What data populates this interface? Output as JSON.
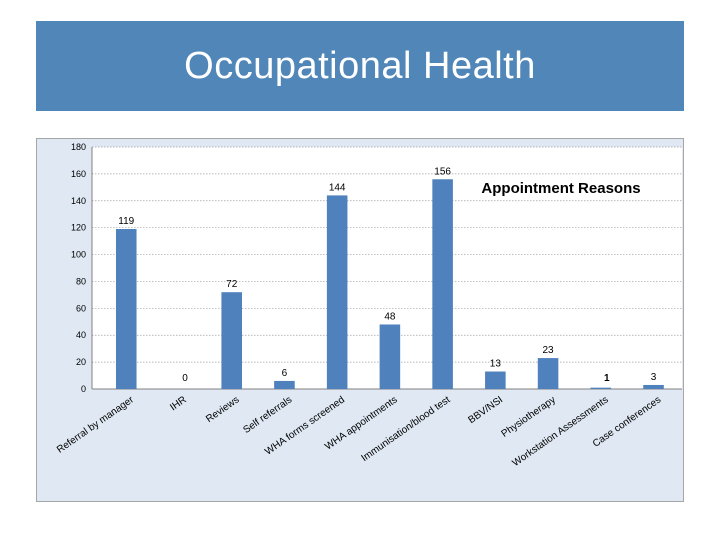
{
  "slide": {
    "title": "Occupational Health"
  },
  "colors": {
    "banner": "#5086b8",
    "bar": "#4f81bd",
    "frame_bg": "#dfe8f3",
    "plot_bg": "#ffffff"
  },
  "chart_data": {
    "type": "bar",
    "title": "Appointment Reasons",
    "xlabel": "",
    "ylabel": "",
    "ylim": [
      0,
      180
    ],
    "yticks": [
      0,
      20,
      40,
      60,
      80,
      100,
      120,
      140,
      160,
      180
    ],
    "grid": true,
    "legend": "none",
    "categories": [
      "Referral by manager",
      "IHR",
      "Reviews",
      "Self referrals",
      "WHA forms screened",
      "WHA appointments",
      "Immunisation/blood test",
      "BBV/NSI",
      "Physiotherapy",
      "Workstation Assessments",
      "Case conferences"
    ],
    "values": [
      119,
      0,
      72,
      6,
      144,
      48,
      156,
      13,
      23,
      1,
      3
    ],
    "data_labels": [
      "119",
      "0",
      "72",
      "6",
      "144",
      "48",
      "156",
      "13",
      "23",
      "1",
      "3"
    ]
  }
}
